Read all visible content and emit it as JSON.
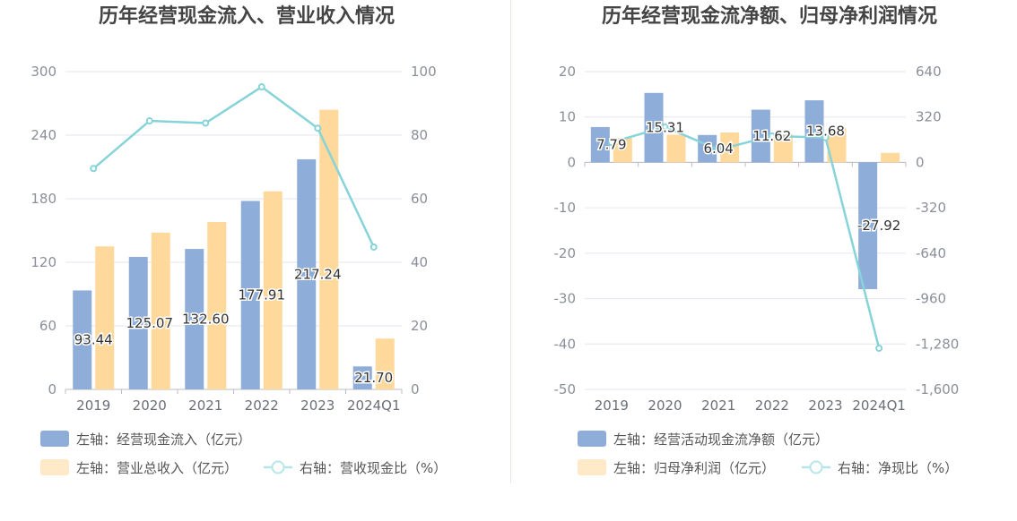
{
  "chart_data": [
    {
      "type": "bar",
      "title": "历年经营现金流入、营业收入情况",
      "categories": [
        "2019",
        "2020",
        "2021",
        "2022",
        "2023",
        "2024Q1"
      ],
      "y_left": {
        "ylim": [
          0,
          300
        ],
        "ticks": [
          0,
          60,
          120,
          180,
          240,
          300
        ]
      },
      "y_right": {
        "ylim": [
          0,
          100
        ],
        "ticks": [
          0,
          20,
          40,
          60,
          80,
          100
        ]
      },
      "series": [
        {
          "name": "左轴：经营现金流入（亿元）",
          "kind": "bar",
          "axis": "left",
          "color": "#8eadd9",
          "values": [
            93.44,
            125.07,
            132.6,
            177.91,
            217.24,
            21.7
          ],
          "labels": [
            "93.44",
            "125.07",
            "132.60",
            "177.91",
            "217.24",
            "21.70"
          ]
        },
        {
          "name": "左轴：营业总收入（亿元）",
          "kind": "bar",
          "axis": "left",
          "color": "#ffd99c",
          "values": [
            135,
            148,
            158,
            187,
            264,
            48
          ]
        },
        {
          "name": "右轴：营收现金比（%）",
          "kind": "line",
          "axis": "right",
          "color": "#86d3d8",
          "values": [
            69.5,
            84.5,
            83.8,
            95.2,
            82.2,
            44.8
          ]
        }
      ],
      "grid": true,
      "legend": "bottom-left"
    },
    {
      "type": "bar",
      "title": "历年经营现金流净额、归母净利润情况",
      "categories": [
        "2019",
        "2020",
        "2021",
        "2022",
        "2023",
        "2024Q1"
      ],
      "y_left": {
        "ylim": [
          -50,
          20
        ],
        "ticks": [
          -50,
          -40,
          -30,
          -20,
          -10,
          0,
          10,
          20
        ]
      },
      "y_right": {
        "ylim": [
          -1600,
          640
        ],
        "ticks": [
          -1600,
          -1280,
          -960,
          -640,
          -320,
          0,
          320,
          640
        ],
        "tick_labels": [
          "-1,600",
          "-1,280",
          "-960",
          "-640",
          "-320",
          "0",
          "320",
          "640"
        ]
      },
      "series": [
        {
          "name": "左轴：经营活动现金流净额（亿元）",
          "kind": "bar",
          "axis": "left",
          "color": "#8eadd9",
          "values": [
            7.79,
            15.31,
            6.04,
            11.62,
            13.68,
            -27.92
          ],
          "labels": [
            "7.79",
            "15.31",
            "6.04",
            "11.62",
            "13.68",
            "-27.92"
          ]
        },
        {
          "name": "左轴：归母净利润（亿元）",
          "kind": "bar",
          "axis": "left",
          "color": "#ffd99c",
          "values": [
            5.4,
            6.1,
            6.6,
            6.2,
            7.6,
            2.1
          ]
        },
        {
          "name": "右轴：净现比（%）",
          "kind": "line",
          "axis": "right",
          "color": "#86d3d8",
          "values": [
            141,
            250,
            90,
            186,
            175,
            -1310
          ]
        }
      ],
      "grid": true,
      "legend": "bottom-left"
    }
  ]
}
